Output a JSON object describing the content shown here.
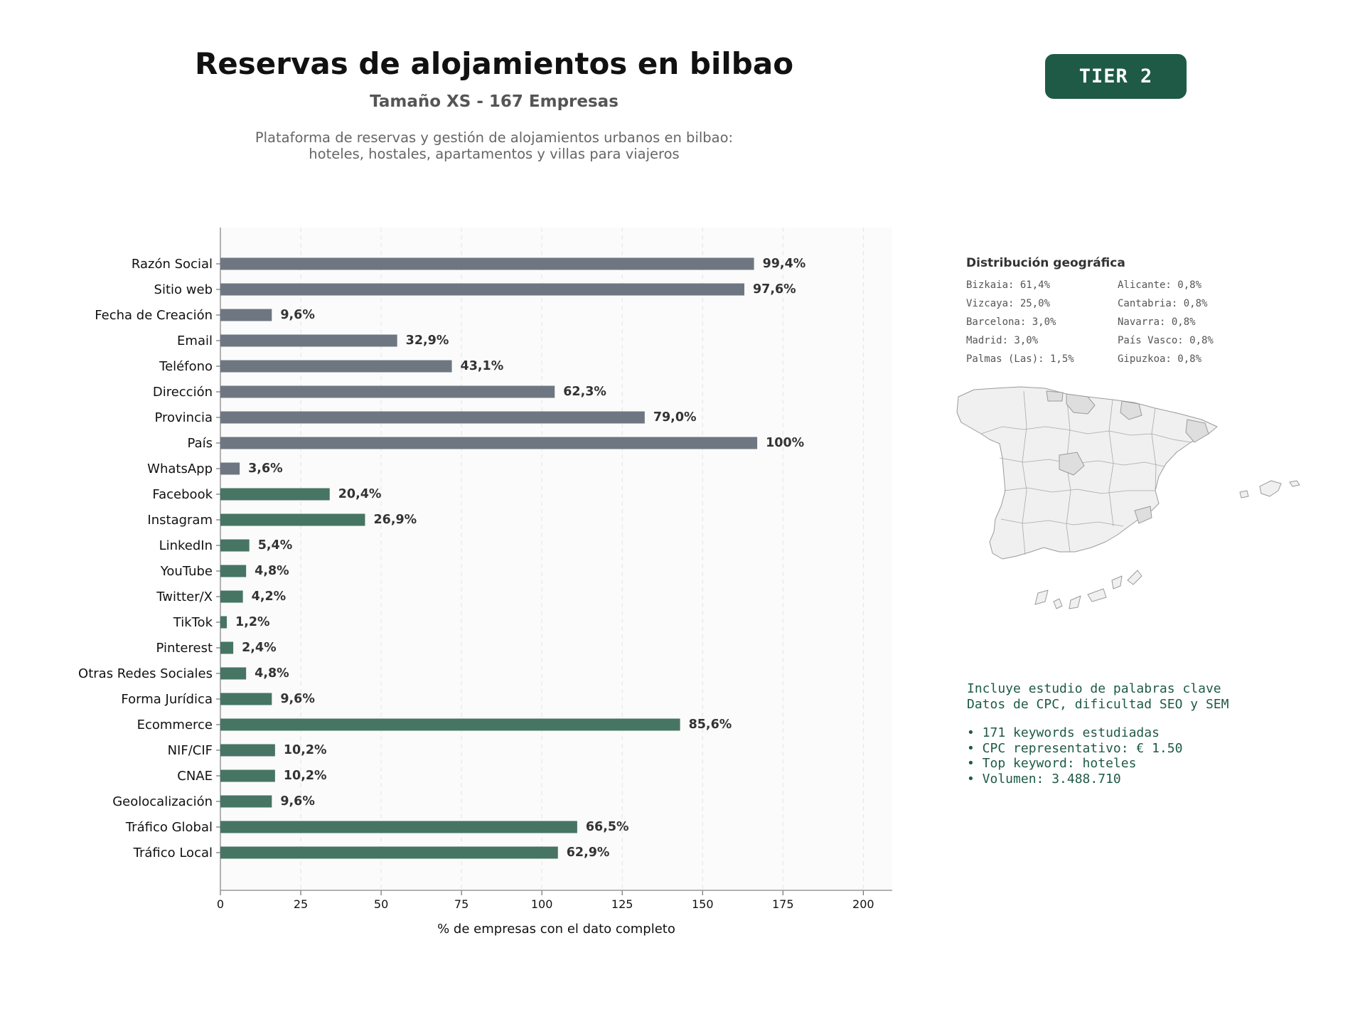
{
  "header": {
    "title": "Reservas de alojamientos en bilbao",
    "subtitle": "Tamaño XS - 167 Empresas",
    "description": "Plataforma de reservas y gestión de alojamientos urbanos en bilbao:\nhoteles, hostales, apartamentos y villas para viajeros"
  },
  "badge": {
    "label": "TIER 2"
  },
  "chart_data": {
    "type": "bar",
    "orientation": "horizontal",
    "xlabel": "% de empresas con el dato completo",
    "xlim": [
      0,
      209
    ],
    "xticks": [
      0,
      25,
      50,
      75,
      100,
      125,
      150,
      175,
      200
    ],
    "grid": "vertical dashed",
    "categories": [
      "Razón Social",
      "Sitio web",
      "Fecha de Creación",
      "Email",
      "Teléfono",
      "Dirección",
      "Provincia",
      "País",
      "WhatsApp",
      "Facebook",
      "Instagram",
      "LinkedIn",
      "YouTube",
      "Twitter/X",
      "TikTok",
      "Pinterest",
      "Otras Redes Sociales",
      "Forma Jurídica",
      "Ecommerce",
      "NIF/CIF",
      "CNAE",
      "Geolocalización",
      "Tráfico Global",
      "Tráfico Local"
    ],
    "values": [
      166,
      163,
      16,
      55,
      72,
      104,
      132,
      167,
      6,
      34,
      45,
      9,
      8,
      7,
      2,
      4,
      8,
      16,
      143,
      17,
      17,
      16,
      111,
      105
    ],
    "labels": [
      "99,4%",
      "97,6%",
      "9,6%",
      "32,9%",
      "43,1%",
      "62,3%",
      "79,0%",
      "100%",
      "3,6%",
      "20,4%",
      "26,9%",
      "5,4%",
      "4,8%",
      "4,2%",
      "1,2%",
      "2,4%",
      "4,8%",
      "9,6%",
      "85,6%",
      "10,2%",
      "10,2%",
      "9,6%",
      "66,5%",
      "62,9%"
    ],
    "bar_colors": [
      "#6e7781",
      "#6e7781",
      "#6e7781",
      "#6e7781",
      "#6e7781",
      "#6e7781",
      "#6e7781",
      "#6e7781",
      "#6e7781",
      "#477563",
      "#477563",
      "#477563",
      "#477563",
      "#477563",
      "#477563",
      "#477563",
      "#477563",
      "#477563",
      "#477563",
      "#477563",
      "#477563",
      "#477563",
      "#477563",
      "#477563"
    ]
  },
  "geo": {
    "title": "Distribución geográfica",
    "items": [
      "Bizkaia: 61,4%",
      "Alicante: 0,8%",
      "Vizcaya: 25,0%",
      "Cantabria: 0,8%",
      "Barcelona: 3,0%",
      "Navarra: 0,8%",
      "Madrid: 3,0%",
      "País Vasco: 0,8%",
      "Palmas (Las): 1,5%",
      "Gipuzkoa: 0,8%"
    ]
  },
  "keywords": {
    "intro": [
      "Incluye estudio de palabras clave",
      "Datos de CPC, dificultad SEO y SEM"
    ],
    "bullets": [
      "• 171 keywords estudiadas",
      "• CPC representativo: € 1.50",
      "• Top keyword: hoteles",
      "• Volumen: 3.488.710"
    ]
  },
  "colors": {
    "brand_green": "#1e5a46",
    "bar_gray": "#6e7781",
    "bar_green": "#477563"
  }
}
